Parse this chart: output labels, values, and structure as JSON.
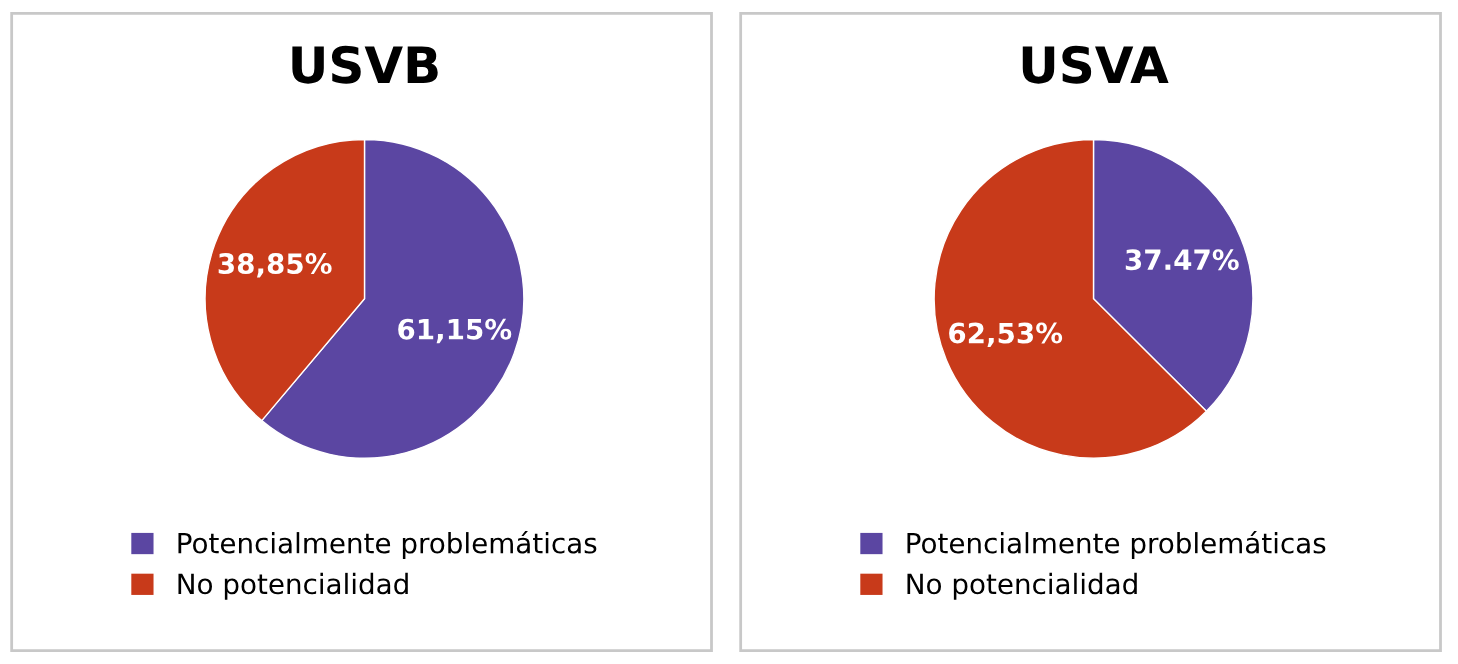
{
  "chart_data": [
    {
      "type": "pie",
      "title": "USVB",
      "categories": [
        "Potencialmente problemáticas",
        "No potencialidad"
      ],
      "values": [
        61.15,
        38.85
      ],
      "colors": [
        "#5b46a2",
        "#c83a1a"
      ],
      "value_labels": [
        "61,15%",
        "38,85%"
      ],
      "legend": "bottom"
    },
    {
      "type": "pie",
      "title": "USVA",
      "categories": [
        "Potencialmente problemáticas",
        "No potencialidad"
      ],
      "values": [
        37.47,
        62.53
      ],
      "colors": [
        "#5b46a2",
        "#c83a1a"
      ],
      "value_labels": [
        "37.47%",
        "62,53%"
      ],
      "legend": "bottom"
    }
  ]
}
